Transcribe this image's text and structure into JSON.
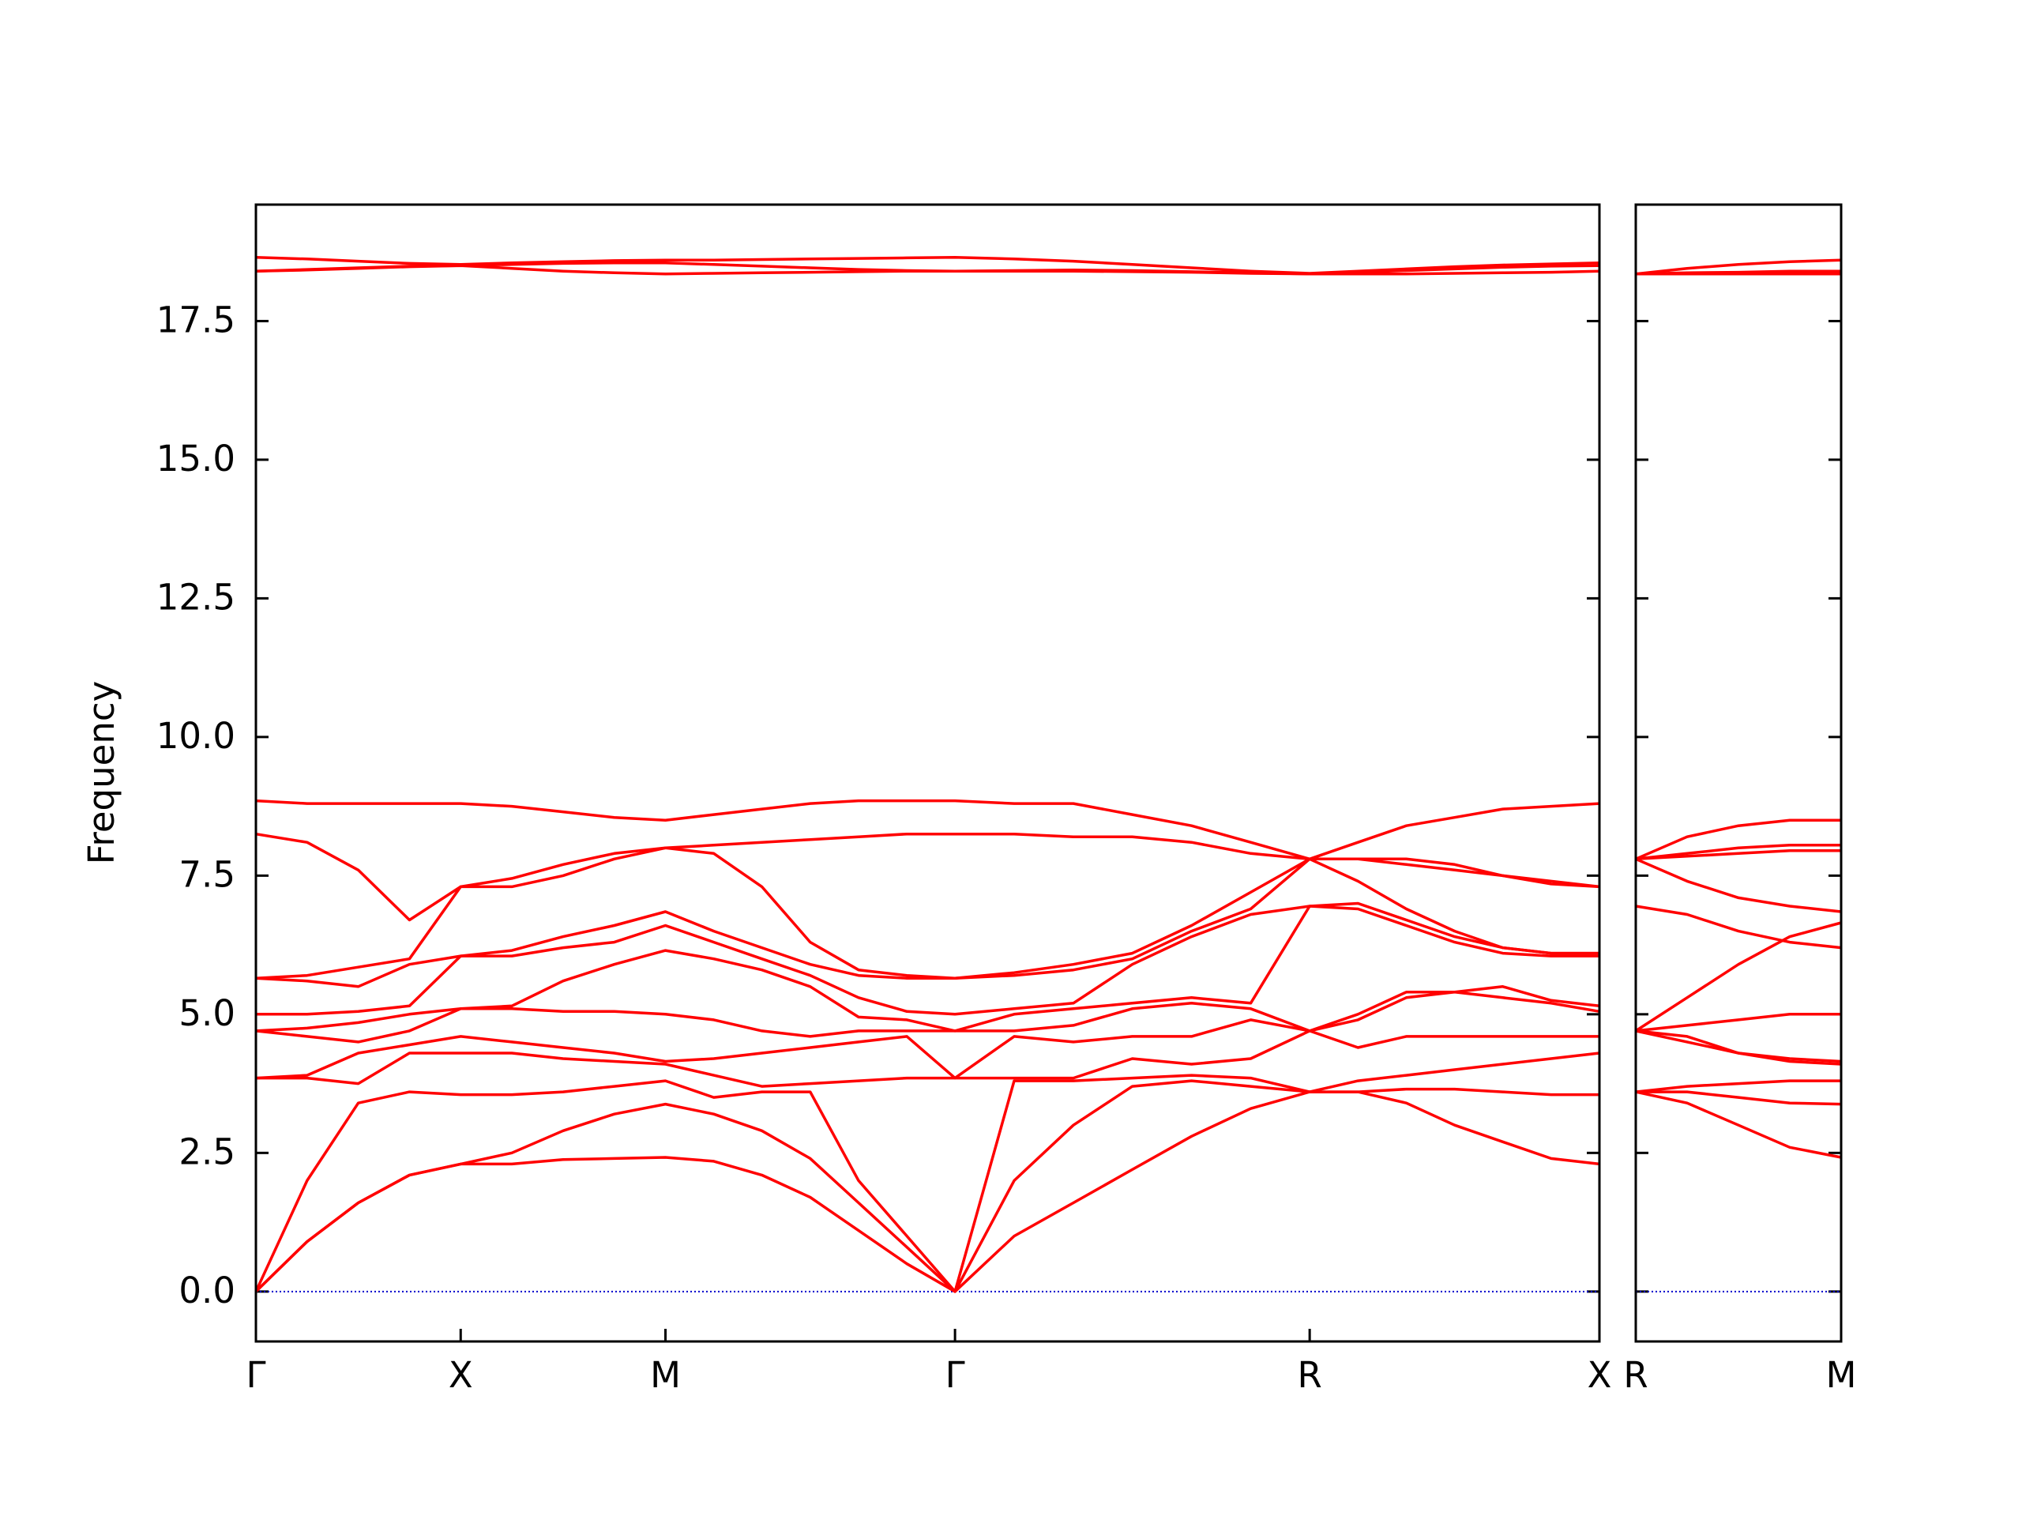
{
  "chart_data": [
    {
      "type": "line",
      "ylabel": "Frequency",
      "color": "#ff0000",
      "x": [
        0,
        0.25,
        0.5,
        0.75,
        1,
        1.25,
        1.5,
        1.75,
        2,
        2.236,
        2.471,
        2.707,
        2.943,
        3.179,
        3.414,
        3.703,
        3.992,
        4.28,
        4.569,
        4.858,
        5.146,
        5.382,
        5.618,
        5.854,
        6.089,
        6.325,
        6.561
      ],
      "xlim": [
        0,
        6.561
      ],
      "xticks": [
        {
          "value": 0,
          "label": "Γ"
        },
        {
          "value": 1,
          "label": "X"
        },
        {
          "value": 2,
          "label": "M"
        },
        {
          "value": 3.414,
          "label": "Γ"
        },
        {
          "value": 5.146,
          "label": "R"
        },
        {
          "value": 6.561,
          "label": "X"
        }
      ],
      "ylim": [
        -0.9,
        19.6
      ],
      "yticks": [
        {
          "value": 0,
          "label": "0.0"
        },
        2.5,
        {
          "value": 5,
          "label": "5.0"
        },
        7.5,
        {
          "value": 10,
          "label": "10.0"
        },
        12.5,
        {
          "value": 15,
          "label": "15.0"
        },
        17.5
      ],
      "hline": {
        "y": 0,
        "color": "#0000cc",
        "style": "dotted"
      },
      "series": [
        {
          "values": [
            0,
            0.9,
            1.6,
            2.1,
            2.3,
            2.3,
            2.38,
            2.4,
            2.42,
            2.35,
            2.1,
            1.7,
            1.1,
            0.5,
            0,
            1.0,
            1.6,
            2.2,
            2.8,
            3.3,
            3.6,
            3.6,
            3.4,
            3.0,
            2.7,
            2.4,
            2.3
          ]
        },
        {
          "values": [
            0,
            0.9,
            1.6,
            2.1,
            2.3,
            2.5,
            2.9,
            3.2,
            3.38,
            3.2,
            2.9,
            2.4,
            1.6,
            0.8,
            0,
            2.0,
            3.0,
            3.7,
            3.8,
            3.7,
            3.6,
            3.6,
            3.65,
            3.65,
            3.6,
            3.55,
            3.55
          ]
        },
        {
          "values": [
            0,
            2.0,
            3.4,
            3.6,
            3.55,
            3.55,
            3.6,
            3.7,
            3.8,
            3.5,
            3.6,
            3.6,
            2.0,
            1.0,
            0,
            3.8,
            3.8,
            3.85,
            3.9,
            3.85,
            3.6,
            3.8,
            3.9,
            4.0,
            4.1,
            4.2,
            4.3
          ]
        },
        {
          "values": [
            3.85,
            3.85,
            3.75,
            4.3,
            4.3,
            4.3,
            4.2,
            4.15,
            4.1,
            3.9,
            3.7,
            3.75,
            3.8,
            3.85,
            3.85,
            3.85,
            3.85,
            4.2,
            4.1,
            4.2,
            4.7,
            4.4,
            4.6,
            4.6,
            4.6,
            4.6,
            4.6
          ]
        },
        {
          "values": [
            3.85,
            3.9,
            4.3,
            4.45,
            4.6,
            4.5,
            4.4,
            4.3,
            4.15,
            4.2,
            4.3,
            4.4,
            4.5,
            4.6,
            3.85,
            4.6,
            4.5,
            4.6,
            4.6,
            4.9,
            4.7,
            4.9,
            5.3,
            5.4,
            5.3,
            5.2,
            5.05
          ]
        },
        {
          "values": [
            4.7,
            4.6,
            4.5,
            4.7,
            5.1,
            5.1,
            5.05,
            5.05,
            5.0,
            4.9,
            4.7,
            4.6,
            4.7,
            4.7,
            4.7,
            4.7,
            4.8,
            5.1,
            5.2,
            5.1,
            4.7,
            5.0,
            5.4,
            5.4,
            5.5,
            5.25,
            5.15
          ]
        },
        {
          "values": [
            4.7,
            4.75,
            4.85,
            5.0,
            5.1,
            5.15,
            5.6,
            5.9,
            6.15,
            6.0,
            5.8,
            5.5,
            4.95,
            4.9,
            4.7,
            5.0,
            5.1,
            5.2,
            5.3,
            5.2,
            6.95,
            6.9,
            6.6,
            6.3,
            6.1,
            6.05,
            6.05
          ]
        },
        {
          "values": [
            5.0,
            5.0,
            5.05,
            5.15,
            6.05,
            6.05,
            6.2,
            6.3,
            6.6,
            6.3,
            6.0,
            5.7,
            5.3,
            5.05,
            5.0,
            5.1,
            5.2,
            5.9,
            6.4,
            6.8,
            6.95,
            7.0,
            6.7,
            6.4,
            6.2,
            6.1,
            6.1
          ]
        },
        {
          "values": [
            5.65,
            5.6,
            5.5,
            5.9,
            6.05,
            6.15,
            6.4,
            6.6,
            6.85,
            6.5,
            6.2,
            5.9,
            5.7,
            5.65,
            5.65,
            5.7,
            5.8,
            6.0,
            6.5,
            6.9,
            7.8,
            7.4,
            6.9,
            6.5,
            6.2,
            6.1,
            6.1
          ]
        },
        {
          "values": [
            5.65,
            5.7,
            5.85,
            6.0,
            7.3,
            7.3,
            7.5,
            7.8,
            8.0,
            7.9,
            7.3,
            6.3,
            5.8,
            5.7,
            5.65,
            5.75,
            5.9,
            6.1,
            6.6,
            7.2,
            7.8,
            7.8,
            7.7,
            7.6,
            7.5,
            7.35,
            7.3
          ]
        },
        {
          "values": [
            8.25,
            8.1,
            7.6,
            6.7,
            7.3,
            7.45,
            7.7,
            7.9,
            8.0,
            8.05,
            8.1,
            8.15,
            8.2,
            8.25,
            8.25,
            8.25,
            8.2,
            8.2,
            8.1,
            7.9,
            7.8,
            7.8,
            7.8,
            7.7,
            7.5,
            7.4,
            7.3
          ]
        },
        {
          "values": [
            8.85,
            8.8,
            8.8,
            8.8,
            8.8,
            8.75,
            8.65,
            8.55,
            8.5,
            8.6,
            8.7,
            8.8,
            8.85,
            8.85,
            8.85,
            8.8,
            8.8,
            8.6,
            8.4,
            8.1,
            7.8,
            8.1,
            8.4,
            8.55,
            8.7,
            8.75,
            8.8
          ]
        },
        {
          "values": [
            18.4,
            18.42,
            18.45,
            18.48,
            18.5,
            18.45,
            18.4,
            18.37,
            18.35,
            18.36,
            18.37,
            18.38,
            18.39,
            18.4,
            18.4,
            18.4,
            18.4,
            18.39,
            18.38,
            18.36,
            18.35,
            18.35,
            18.35,
            18.36,
            18.37,
            18.38,
            18.4
          ]
        },
        {
          "values": [
            18.4,
            18.43,
            18.46,
            18.49,
            18.5,
            18.52,
            18.54,
            18.55,
            18.55,
            18.52,
            18.49,
            18.46,
            18.43,
            18.41,
            18.4,
            18.41,
            18.42,
            18.41,
            18.39,
            18.37,
            18.35,
            18.38,
            18.41,
            18.44,
            18.47,
            18.49,
            18.5
          ]
        },
        {
          "values": [
            18.65,
            18.62,
            18.58,
            18.54,
            18.52,
            18.55,
            18.57,
            18.59,
            18.6,
            18.6,
            18.61,
            18.62,
            18.63,
            18.64,
            18.65,
            18.62,
            18.58,
            18.52,
            18.46,
            18.4,
            18.36,
            18.4,
            18.44,
            18.48,
            18.51,
            18.53,
            18.55
          ]
        }
      ]
    },
    {
      "type": "line",
      "color": "#ff0000",
      "x": [
        0,
        0.25,
        0.5,
        0.75,
        1
      ],
      "xlim": [
        0,
        1
      ],
      "xticks": [
        {
          "value": 0,
          "label": "R"
        },
        {
          "value": 1,
          "label": "M"
        }
      ],
      "ylim": [
        -0.9,
        19.6
      ],
      "hline": {
        "y": 0,
        "color": "#0000cc",
        "style": "dotted"
      },
      "series": [
        {
          "values": [
            3.6,
            3.4,
            3.0,
            2.6,
            2.42
          ]
        },
        {
          "values": [
            3.6,
            3.6,
            3.5,
            3.4,
            3.38
          ]
        },
        {
          "values": [
            3.6,
            3.7,
            3.75,
            3.8,
            3.8
          ]
        },
        {
          "values": [
            4.7,
            4.5,
            4.3,
            4.15,
            4.1
          ]
        },
        {
          "values": [
            4.7,
            4.6,
            4.3,
            4.2,
            4.15
          ]
        },
        {
          "values": [
            4.7,
            4.8,
            4.9,
            5.0,
            5.0
          ]
        },
        {
          "values": [
            6.95,
            6.8,
            6.5,
            6.3,
            6.2
          ]
        },
        {
          "values": [
            4.7,
            5.3,
            5.9,
            6.4,
            6.65
          ]
        },
        {
          "values": [
            7.8,
            7.4,
            7.1,
            6.95,
            6.85
          ]
        },
        {
          "values": [
            7.8,
            7.85,
            7.9,
            7.95,
            7.95
          ]
        },
        {
          "values": [
            7.8,
            7.9,
            8.0,
            8.05,
            8.05
          ]
        },
        {
          "values": [
            7.8,
            8.2,
            8.4,
            8.5,
            8.5
          ]
        },
        {
          "values": [
            18.35,
            18.35,
            18.35,
            18.35,
            18.35
          ]
        },
        {
          "values": [
            18.35,
            18.37,
            18.38,
            18.4,
            18.4
          ]
        },
        {
          "values": [
            18.35,
            18.45,
            18.52,
            18.57,
            18.6
          ]
        }
      ]
    }
  ]
}
